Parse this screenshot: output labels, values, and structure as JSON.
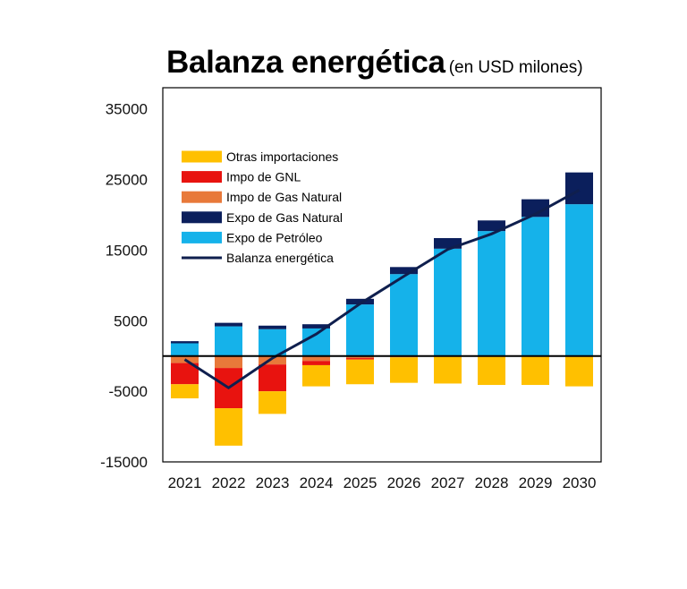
{
  "title": "Balanza energética",
  "subtitle": "(en USD milones)",
  "chart_data": {
    "type": "bar",
    "stacked": true,
    "title": "Balanza energética",
    "subtitle": "(en USD milones)",
    "categories": [
      "2021",
      "2022",
      "2023",
      "2024",
      "2025",
      "2026",
      "2027",
      "2028",
      "2029",
      "2030"
    ],
    "yticks": [
      "35000",
      "25000",
      "15000",
      "5000",
      "-5000",
      "-15000"
    ],
    "ylim": [
      -15000,
      38000
    ],
    "legend_position": "top-left",
    "series": [
      {
        "name": "Otras importaciones",
        "color": "#FFC000",
        "kind": "bar",
        "values": [
          -2000,
          -5300,
          -3200,
          -3000,
          -3500,
          -3600,
          -3800,
          -4000,
          -4000,
          -4200
        ]
      },
      {
        "name": "Impo de GNL",
        "color": "#E8130F",
        "kind": "bar",
        "values": [
          -3000,
          -5700,
          -3800,
          -600,
          -200,
          0,
          0,
          0,
          0,
          0
        ]
      },
      {
        "name": "Impo de Gas Natural",
        "color": "#E8793A",
        "kind": "bar",
        "values": [
          -1000,
          -1700,
          -1200,
          -700,
          -300,
          -200,
          -100,
          -100,
          -100,
          -100
        ]
      },
      {
        "name": "Expo de Gas Natural",
        "color": "#0B1F5C",
        "kind": "bar",
        "values": [
          300,
          500,
          500,
          600,
          800,
          1000,
          1500,
          1500,
          2500,
          4500
        ]
      },
      {
        "name": "Expo de Petróleo",
        "color": "#15B2EA",
        "kind": "bar",
        "values": [
          1800,
          4200,
          3800,
          3900,
          7300,
          11600,
          15200,
          17700,
          19700,
          21500
        ]
      },
      {
        "name": "Balanza energética",
        "color": "#0F1F4E",
        "kind": "line",
        "values": [
          -500,
          -4500,
          -300,
          3100,
          7400,
          11300,
          15100,
          17300,
          20100,
          23500
        ]
      }
    ]
  }
}
